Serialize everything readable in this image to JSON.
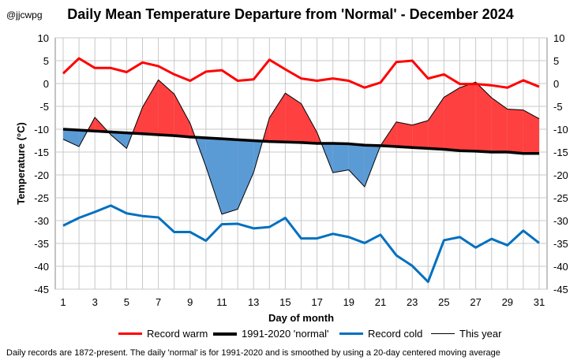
{
  "header": {
    "handle": "@jjcwpg",
    "title": "Daily Mean Temperature Departure from 'Normal' - December 2024"
  },
  "footnote": "Daily records are 1872-present. The  daily 'normal' is for 1991-2020 and is smoothed by using a 20-day centered  moving average",
  "legend": [
    {
      "label": "Record warm",
      "color": "#ff0000",
      "width": 3
    },
    {
      "label": "1991-2020 'normal'",
      "color": "#000000",
      "width": 3.5
    },
    {
      "label": "Record cold",
      "color": "#0070c0",
      "width": 3
    },
    {
      "label": "This year",
      "color": "#000000",
      "width": 1
    }
  ],
  "chart_data": {
    "type": "line",
    "title": "Daily Mean Temperature Departure from 'Normal' - December 2024",
    "xlabel": "Day of month",
    "ylabel": "Temperature (°C)",
    "xlim": [
      1,
      31
    ],
    "ylim": [
      -45,
      10
    ],
    "x_ticks": [
      1,
      3,
      5,
      7,
      9,
      11,
      13,
      15,
      17,
      19,
      21,
      23,
      25,
      27,
      29,
      31
    ],
    "y_ticks": [
      10,
      5,
      0,
      -5,
      -10,
      -15,
      -20,
      -25,
      -30,
      -35,
      -40,
      -45
    ],
    "grid": true,
    "legend_position": "bottom",
    "x": [
      1,
      2,
      3,
      4,
      5,
      6,
      7,
      8,
      9,
      10,
      11,
      12,
      13,
      14,
      15,
      16,
      17,
      18,
      19,
      20,
      21,
      22,
      23,
      24,
      25,
      26,
      27,
      28,
      29,
      30,
      31
    ],
    "series": [
      {
        "name": "Record warm",
        "color": "#ff0000",
        "values": [
          2.2,
          5.5,
          3.4,
          3.4,
          2.5,
          4.6,
          3.8,
          2.0,
          0.6,
          2.6,
          2.9,
          0.6,
          0.9,
          5.2,
          3.1,
          1.1,
          0.6,
          1.1,
          0.6,
          -0.9,
          0.2,
          4.7,
          5.0,
          1.1,
          2.0,
          -0.1,
          -0.1,
          -0.4,
          -0.9,
          0.7,
          -0.7
        ]
      },
      {
        "name": "1991-2020 'normal'",
        "color": "#000000",
        "values": [
          -10.0,
          -10.2,
          -10.4,
          -10.6,
          -10.8,
          -11.0,
          -11.2,
          -11.4,
          -11.7,
          -11.9,
          -12.1,
          -12.3,
          -12.5,
          -12.7,
          -12.8,
          -12.9,
          -13.1,
          -13.1,
          -13.2,
          -13.5,
          -13.6,
          -13.8,
          -14.0,
          -14.2,
          -14.4,
          -14.7,
          -14.8,
          -15.0,
          -15.0,
          -15.3,
          -15.3
        ]
      },
      {
        "name": "Record cold",
        "color": "#0070c0",
        "values": [
          -31.1,
          -29.4,
          -28.1,
          -26.7,
          -28.4,
          -29.0,
          -29.3,
          -32.5,
          -32.5,
          -34.4,
          -30.8,
          -30.7,
          -31.7,
          -31.4,
          -29.4,
          -33.9,
          -33.9,
          -32.9,
          -33.6,
          -34.9,
          -33.1,
          -37.6,
          -39.9,
          -43.4,
          -34.3,
          -33.6,
          -35.9,
          -34.0,
          -35.4,
          -32.2,
          -34.9
        ]
      },
      {
        "name": "This year",
        "color": "#000000",
        "values": [
          -12.2,
          -13.8,
          -7.4,
          -11.2,
          -14.2,
          -5.2,
          0.8,
          -2.3,
          -8.7,
          -18.2,
          -28.6,
          -27.5,
          -19.5,
          -7.5,
          -2.1,
          -4.4,
          -10.7,
          -19.5,
          -18.9,
          -22.6,
          -13.6,
          -8.4,
          -9.1,
          -8.1,
          -3.0,
          -0.9,
          0.3,
          -3.1,
          -5.6,
          -5.8,
          -7.7
        ]
      }
    ],
    "fills": [
      {
        "name": "above-normal-fill",
        "color": "#ff4040",
        "meaning": "This year above normal"
      },
      {
        "name": "below-normal-fill",
        "color": "#5b9bd5",
        "meaning": "This year below normal"
      }
    ]
  }
}
